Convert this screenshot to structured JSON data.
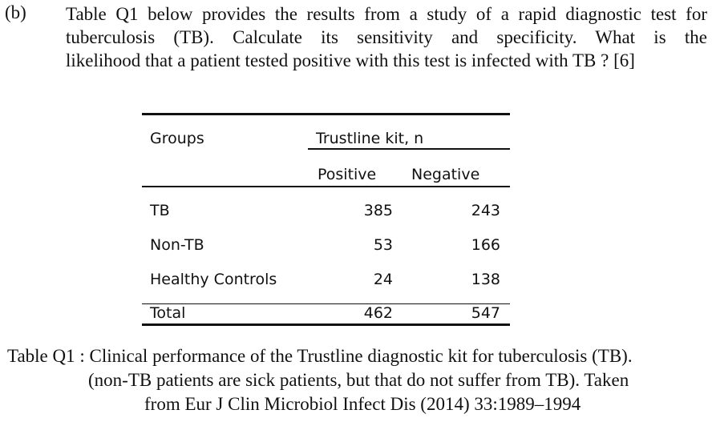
{
  "question": {
    "label": "(b)",
    "lines": [
      "Table Q1 below provides the results from a study of a rapid diagnostic test for",
      "tuberculosis (TB). Calculate its sensitivity and specificity. What is the",
      "likelihood that a patient tested positive with this test is infected with TB ? [6]"
    ]
  },
  "table": {
    "groups_header": "Groups",
    "kit_header": "Trustline kit, n",
    "positive_header": "Positive",
    "negative_header": "Negative",
    "rows": [
      {
        "group": "TB",
        "positive": "385",
        "negative": "243"
      },
      {
        "group": "Non-TB",
        "positive": "53",
        "negative": "166"
      },
      {
        "group": "Healthy Controls",
        "positive": "24",
        "negative": "138"
      },
      {
        "group": "Total",
        "positive": "462",
        "negative": "547"
      }
    ]
  },
  "caption": {
    "lines": [
      "Table Q1 : Clinical performance of the Trustline diagnostic kit for tuberculosis (TB).",
      "(non-TB patients are sick patients, but that do not suffer from TB). Taken",
      "from Eur J Clin Microbiol Infect Dis (2014) 33:1989–1994"
    ]
  }
}
